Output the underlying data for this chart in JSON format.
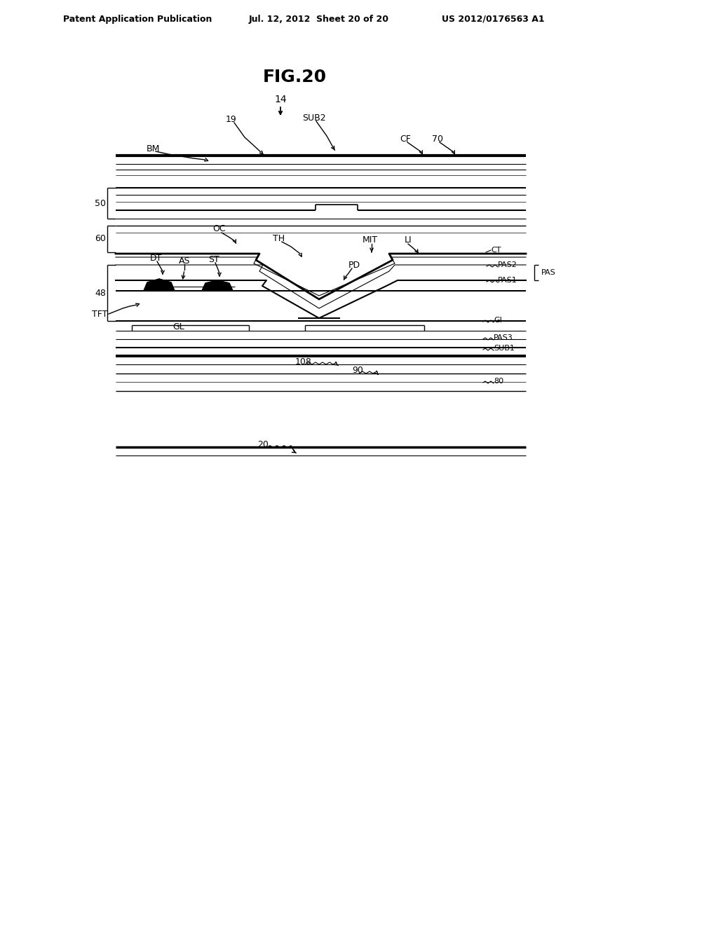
{
  "title": "FIG.20",
  "header_left": "Patent Application Publication",
  "header_mid": "Jul. 12, 2012  Sheet 20 of 20",
  "header_right": "US 2012/0176563 A1",
  "bg_color": "#ffffff",
  "lc": "#000000",
  "tc": "#000000"
}
